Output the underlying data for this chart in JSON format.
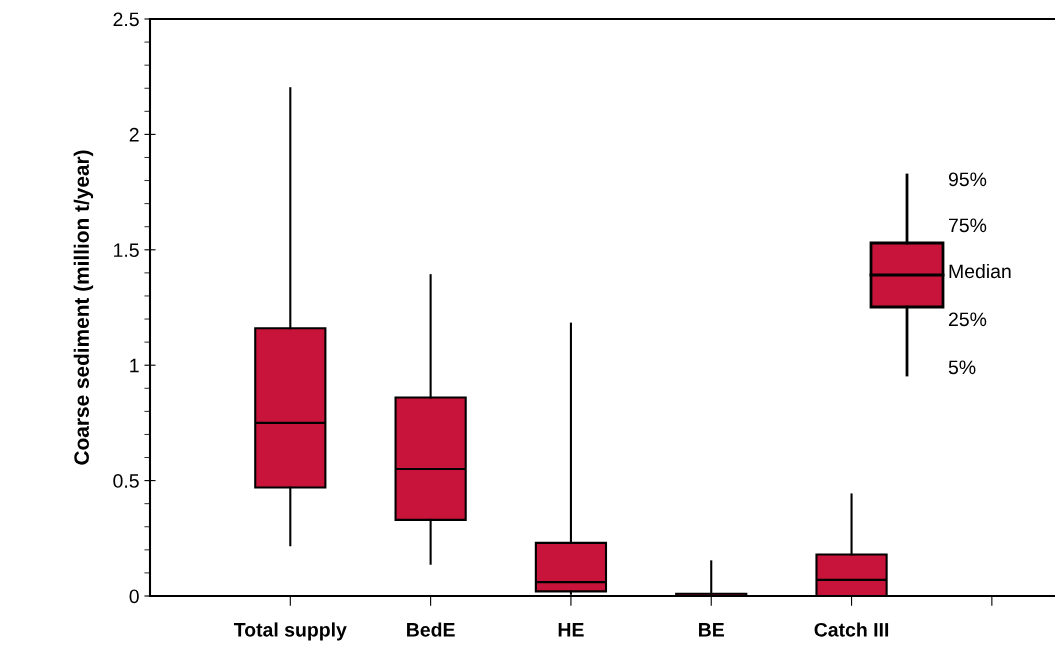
{
  "chart_data": {
    "type": "box",
    "ylabel": "Coarse sediment (million t/year)",
    "categories": [
      "Total supply",
      "BedE",
      "HE",
      "BE",
      "Catch III",
      null
    ],
    "color": "#c8143a",
    "boxes": [
      {
        "low": 0.22,
        "q1": 0.47,
        "median": 0.75,
        "q3": 1.16,
        "high": 2.2
      },
      {
        "low": 0.14,
        "q1": 0.33,
        "median": 0.55,
        "q3": 0.86,
        "high": 1.39
      },
      {
        "low": 0.01,
        "q1": 0.02,
        "median": 0.06,
        "q3": 0.23,
        "high": 1.18
      },
      {
        "low": 0,
        "q1": 0,
        "median": 0,
        "q3": 0.01,
        "high": 0.15
      },
      {
        "low": 0,
        "q1": 0,
        "median": 0.07,
        "q3": 0.18,
        "high": 0.44
      },
      null
    ],
    "ylim": [
      0,
      2.5
    ],
    "yticks": [
      0,
      0.5,
      1,
      1.5,
      2,
      2.5
    ],
    "annotations": [
      "95%",
      "75%",
      "Median",
      "25%",
      "5%"
    ]
  }
}
